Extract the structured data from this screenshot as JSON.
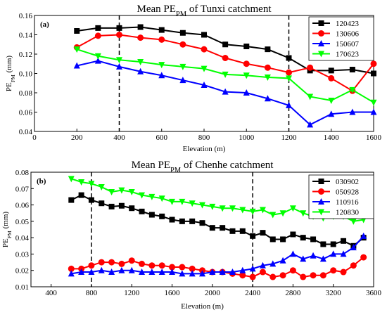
{
  "chart_data": [
    {
      "type": "line",
      "panel_label": "(a)",
      "title_main": "Mean PE",
      "title_sub": "PM",
      "title_rest": " of Tunxi catchment",
      "ylabel_main": "PE",
      "ylabel_sub": "PM",
      "ylabel_rest": " (mm)",
      "xlabel": "Elevation (m)",
      "xlim": [
        0,
        1600
      ],
      "ylim": [
        0.04,
        0.16
      ],
      "xticks": [
        "0",
        "200",
        "400",
        "600",
        "800",
        "1000",
        "1200",
        "1400",
        "1600"
      ],
      "yticks": [
        "0.04",
        "0.06",
        "0.08",
        "0.10",
        "0.12",
        "0.14",
        "0.16"
      ],
      "vlines": [
        400,
        1200
      ],
      "legend_position": "top-right",
      "x": [
        200,
        300,
        400,
        500,
        600,
        700,
        800,
        900,
        1000,
        1100,
        1200,
        1300,
        1400,
        1500,
        1600
      ],
      "series": [
        {
          "name": "120423",
          "color": "#000000",
          "marker": "square",
          "values": [
            0.144,
            0.147,
            0.147,
            0.148,
            0.145,
            0.142,
            0.14,
            0.13,
            0.128,
            0.125,
            0.116,
            0.103,
            0.103,
            0.104,
            0.1
          ]
        },
        {
          "name": "130606",
          "color": "#ff0000",
          "marker": "circle",
          "values": [
            0.127,
            0.139,
            0.14,
            0.137,
            0.135,
            0.13,
            0.125,
            0.116,
            0.11,
            0.106,
            0.101,
            0.106,
            0.095,
            0.082,
            0.11
          ]
        },
        {
          "name": "150607",
          "color": "#0000ff",
          "marker": "triangle-up",
          "values": [
            0.108,
            0.113,
            0.107,
            0.102,
            0.098,
            0.093,
            0.088,
            0.081,
            0.08,
            0.074,
            0.067,
            0.047,
            0.058,
            0.06,
            0.06
          ]
        },
        {
          "name": "170623",
          "color": "#00ff00",
          "marker": "triangle-down",
          "values": [
            0.125,
            0.118,
            0.114,
            0.112,
            0.109,
            0.107,
            0.105,
            0.099,
            0.098,
            0.096,
            0.095,
            0.076,
            0.072,
            0.083,
            0.07
          ]
        }
      ]
    },
    {
      "type": "line",
      "panel_label": "(b)",
      "title_main": "Mean PE",
      "title_sub": "PM",
      "title_rest": " of Chenhe catchment",
      "ylabel_main": "PE",
      "ylabel_sub": "PM",
      "ylabel_rest": " (mm)",
      "xlabel": "Elevation (m)",
      "xlim": [
        200,
        3600
      ],
      "ylim": [
        0.01,
        0.08
      ],
      "xticks": [
        "400",
        "800",
        "1200",
        "1600",
        "2000",
        "2400",
        "2800",
        "3200",
        "3600"
      ],
      "yticks": [
        "0.01",
        "0.02",
        "0.03",
        "0.04",
        "0.05",
        "0.06",
        "0.07",
        "0.08"
      ],
      "vlines": [
        800,
        2400
      ],
      "legend_position": "top-right",
      "x": [
        600,
        700,
        800,
        900,
        1000,
        1100,
        1200,
        1300,
        1400,
        1500,
        1600,
        1700,
        1800,
        1900,
        2000,
        2100,
        2200,
        2300,
        2400,
        2500,
        2600,
        2700,
        2800,
        2900,
        3000,
        3100,
        3200,
        3300,
        3400,
        3500
      ],
      "series": [
        {
          "name": "030902",
          "color": "#000000",
          "marker": "square",
          "values": [
            0.063,
            0.066,
            0.063,
            0.061,
            0.059,
            0.0595,
            0.058,
            0.056,
            0.054,
            0.053,
            0.051,
            0.05,
            0.05,
            0.049,
            0.046,
            0.046,
            0.044,
            0.044,
            0.041,
            0.043,
            0.039,
            0.039,
            0.042,
            0.04,
            0.039,
            0.036,
            0.036,
            0.038,
            0.035,
            0.04
          ]
        },
        {
          "name": "050928",
          "color": "#ff0000",
          "marker": "circle",
          "values": [
            0.021,
            0.021,
            0.023,
            0.025,
            0.025,
            0.024,
            0.026,
            0.024,
            0.023,
            0.023,
            0.022,
            0.022,
            0.021,
            0.02,
            0.019,
            0.019,
            0.018,
            0.017,
            0.016,
            0.019,
            0.016,
            0.017,
            0.02,
            0.016,
            0.017,
            0.017,
            0.02,
            0.019,
            0.023,
            0.028
          ]
        },
        {
          "name": "110916",
          "color": "#0000ff",
          "marker": "triangle-up",
          "values": [
            0.018,
            0.019,
            0.019,
            0.02,
            0.019,
            0.02,
            0.02,
            0.019,
            0.019,
            0.019,
            0.019,
            0.018,
            0.018,
            0.018,
            0.019,
            0.019,
            0.019,
            0.02,
            0.021,
            0.023,
            0.024,
            0.026,
            0.03,
            0.027,
            0.029,
            0.027,
            0.03,
            0.03,
            0.034,
            0.041
          ]
        },
        {
          "name": "120830",
          "color": "#00ff00",
          "marker": "triangle-down",
          "values": [
            0.076,
            0.074,
            0.073,
            0.071,
            0.068,
            0.069,
            0.068,
            0.066,
            0.065,
            0.064,
            0.062,
            0.062,
            0.061,
            0.06,
            0.059,
            0.058,
            0.058,
            0.057,
            0.056,
            0.057,
            0.054,
            0.055,
            0.058,
            0.055,
            0.053,
            0.052,
            0.053,
            0.053,
            0.05,
            0.051
          ]
        }
      ]
    }
  ]
}
